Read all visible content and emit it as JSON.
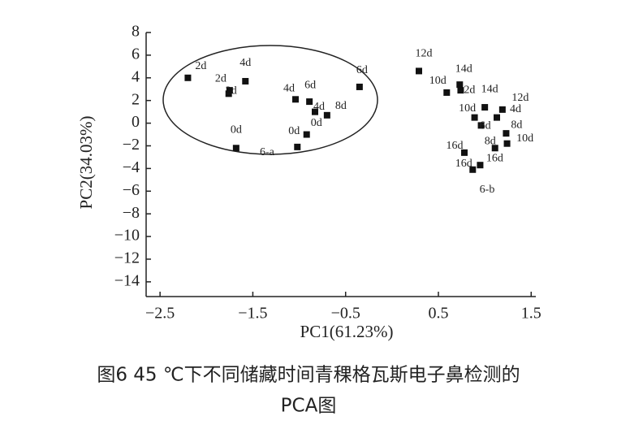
{
  "chart_data": {
    "type": "scatter",
    "xlabel": "PC1(61.23%)",
    "ylabel": "PC2(34.03%)",
    "caption": [
      "图6  45 ℃下不同储藏时间青稞格瓦斯电子鼻检测的",
      "PCA图"
    ],
    "annotations": [
      "6-a",
      "6-b"
    ],
    "color": "#111111",
    "x": [
      -2.2,
      -1.76,
      -1.75,
      -1.58,
      -1.68,
      -1.04,
      -0.89,
      -0.83,
      -0.7,
      -0.92,
      -1.02,
      -0.35,
      0.29,
      0.59,
      0.73,
      0.74,
      1.0,
      0.89,
      0.96,
      1.19,
      1.13,
      1.23,
      1.24,
      1.11,
      0.78,
      0.95,
      0.87
    ],
    "y": [
      4.0,
      2.6,
      2.9,
      3.7,
      -2.2,
      2.1,
      1.9,
      1.0,
      0.7,
      -1.0,
      -2.1,
      3.2,
      4.6,
      2.7,
      3.4,
      2.9,
      1.4,
      0.5,
      -0.2,
      1.2,
      0.5,
      -0.9,
      -1.8,
      -2.2,
      -2.6,
      -3.7,
      -4.1
    ],
    "labels": [
      "2d",
      "2d",
      "2d",
      "4d",
      "0d",
      "4d",
      "6d",
      "4d",
      "8d",
      "0d",
      "0d",
      "6d",
      "12d",
      "10d",
      "14d",
      "2d",
      "14d",
      "10d",
      "6d",
      "12d",
      "4d",
      "8d",
      "10d",
      "8d",
      "16d",
      "16d",
      "16d"
    ],
    "xlim": [
      -2.65,
      1.55
    ],
    "ylim": [
      -15.3,
      8
    ],
    "xticks": [
      {
        "value": -2.5,
        "label": "−2.5"
      },
      {
        "value": -1.5,
        "label": "−1.5"
      },
      {
        "value": -0.5,
        "label": "−0.5"
      },
      0.5,
      1.5
    ],
    "yticks": [
      8,
      6,
      4,
      2,
      0,
      {
        "value": -2,
        "label": "−2"
      },
      {
        "value": -4,
        "label": "−4"
      },
      {
        "value": -6,
        "label": "−6"
      },
      {
        "value": -8,
        "label": "−8"
      },
      {
        "value": -10,
        "label": "−10"
      },
      {
        "value": -12,
        "label": "−12"
      },
      {
        "value": -14,
        "label": "−14"
      }
    ]
  }
}
